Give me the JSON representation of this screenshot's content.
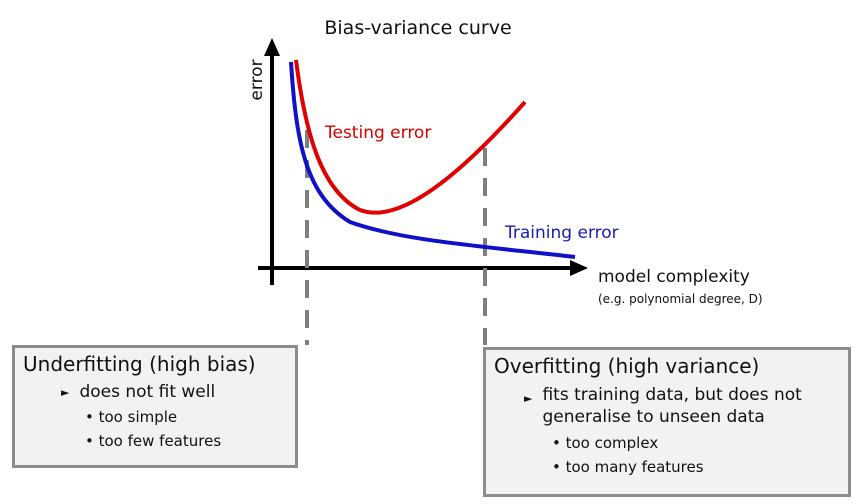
{
  "title": "Bias-variance curve",
  "y_axis_label": "error",
  "x_axis_label": "model complexity",
  "x_axis_note": "(e.g. polynomial degree, D)",
  "curves": [
    {
      "label": "Testing error"
    },
    {
      "label": "Training error"
    }
  ],
  "boxes": [
    {
      "title": "Underfitting (high bias)",
      "points": [
        {
          "text": "does not fit well",
          "subpoints": [
            "too simple",
            "too few features"
          ]
        }
      ]
    },
    {
      "title": "Overfitting (high variance)",
      "points": [
        {
          "text": "fits training data, but does not generalise to unseen data",
          "subpoints": [
            "too complex",
            "too many features"
          ]
        }
      ]
    }
  ]
}
